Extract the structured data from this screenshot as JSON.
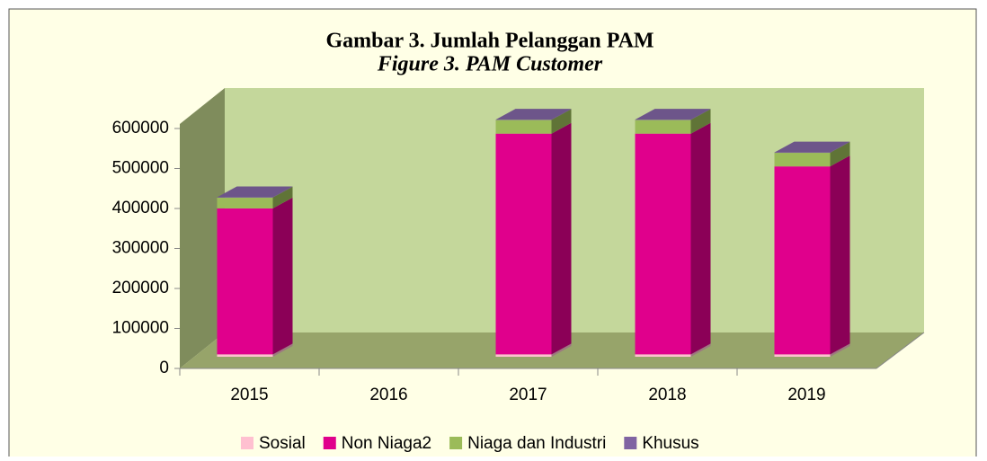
{
  "chart_data": {
    "type": "bar3d_stacked",
    "title": "Gambar 3. Jumlah Pelanggan PAM",
    "subtitle": "Figure 3. PAM Customer",
    "categories": [
      "2015",
      "2016",
      "2017",
      "2018",
      "2019"
    ],
    "series": [
      {
        "name": "Sosial",
        "color": "#ffc0d0",
        "values": [
          6000,
          null,
          6000,
          6000,
          6000
        ]
      },
      {
        "name": "Non Niaga2",
        "color": "#e0008c",
        "values": [
          365000,
          null,
          552000,
          552000,
          470000
        ]
      },
      {
        "name": "Niaga dan Industri",
        "color": "#9bbb59",
        "values": [
          27000,
          null,
          34000,
          34000,
          34000
        ]
      },
      {
        "name": "Khusus",
        "color": "#8064a2",
        "values": [
          1000,
          null,
          1000,
          1000,
          1000
        ]
      }
    ],
    "ylim": [
      0,
      600000
    ],
    "yticks": [
      0,
      100000,
      200000,
      300000,
      400000,
      500000,
      600000
    ],
    "legend": "bottom"
  }
}
